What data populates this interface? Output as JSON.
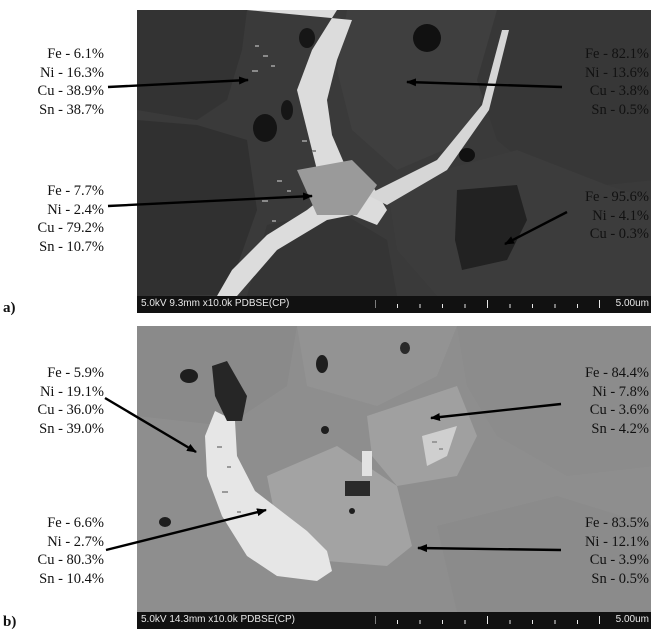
{
  "panels": [
    {
      "letter": "a)",
      "scalebar": {
        "params": "5.0kV 9.3mm x10.0k PDBSE(CP)",
        "scale": "5.00um"
      },
      "annotations": [
        {
          "side": "left",
          "lines": [
            "Fe - 6.1%",
            "Ni - 16.3%",
            "Cu - 38.9%",
            "Sn - 38.7%"
          ]
        },
        {
          "side": "right",
          "lines": [
            "Fe - 82.1%",
            "Ni - 13.6%",
            "Cu - 3.8%",
            "Sn - 0.5%"
          ]
        },
        {
          "side": "left",
          "lines": [
            "Fe - 7.7%",
            "Ni - 2.4%",
            "Cu - 79.2%",
            "Sn - 10.7%"
          ]
        },
        {
          "side": "right",
          "lines": [
            "Fe - 95.6%",
            "Ni - 4.1%",
            "Cu - 0.3%"
          ]
        }
      ]
    },
    {
      "letter": "b)",
      "scalebar": {
        "params": "5.0kV 14.3mm x10.0k PDBSE(CP)",
        "scale": "5.00um"
      },
      "annotations": [
        {
          "side": "left",
          "lines": [
            "Fe - 5.9%",
            "Ni - 19.1%",
            "Cu - 36.0%",
            "Sn - 39.0%"
          ]
        },
        {
          "side": "right",
          "lines": [
            "Fe - 84.4%",
            "Ni - 7.8%",
            "Cu - 3.6%",
            "Sn - 4.2%"
          ]
        },
        {
          "side": "left",
          "lines": [
            "Fe - 6.6%",
            "Ni - 2.7%",
            "Cu - 80.3%",
            "Sn - 10.4%"
          ]
        },
        {
          "side": "right",
          "lines": [
            "Fe - 83.5%",
            "Ni - 12.1%",
            "Cu - 3.9%",
            "Sn - 0.5%"
          ]
        }
      ]
    }
  ]
}
